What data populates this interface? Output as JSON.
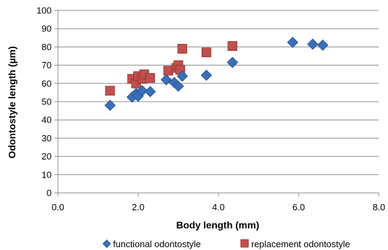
{
  "chart_data": {
    "type": "scatter",
    "title": "",
    "xlabel": "Body length (mm)",
    "ylabel": "Odontostyle length (µm)",
    "xlim": [
      0,
      8
    ],
    "ylim": [
      0,
      100
    ],
    "x_ticks": [
      0,
      2,
      4,
      6,
      8
    ],
    "x_tick_labels": [
      "0.0",
      "2.0",
      "4.0",
      "6.0",
      "8.0"
    ],
    "y_ticks": [
      0,
      10,
      20,
      30,
      40,
      50,
      60,
      70,
      80,
      90,
      100
    ],
    "y_tick_labels": [
      "0",
      "10",
      "20",
      "30",
      "40",
      "50",
      "60",
      "70",
      "80",
      "90",
      "100"
    ],
    "grid": "horizontal",
    "legend_position": "bottom",
    "series": [
      {
        "name": "functional odontostyle",
        "marker": "diamond",
        "color": "#3a6fb7",
        "points": [
          [
            1.3,
            48
          ],
          [
            1.85,
            52.5
          ],
          [
            1.95,
            54.5
          ],
          [
            2.0,
            53
          ],
          [
            2.1,
            56
          ],
          [
            2.3,
            55.5
          ],
          [
            2.7,
            62
          ],
          [
            2.9,
            60.5
          ],
          [
            3.0,
            58.5
          ],
          [
            3.1,
            64
          ],
          [
            3.7,
            64.5
          ],
          [
            4.35,
            71.5
          ],
          [
            5.85,
            82.5
          ],
          [
            6.35,
            81.5
          ],
          [
            6.6,
            81
          ]
        ]
      },
      {
        "name": "replacement odontostyle",
        "marker": "square",
        "color": "#c0504d",
        "points": [
          [
            1.3,
            56
          ],
          [
            1.85,
            62.5
          ],
          [
            1.95,
            60
          ],
          [
            2.0,
            64
          ],
          [
            2.1,
            62.5
          ],
          [
            2.15,
            65
          ],
          [
            2.3,
            63
          ],
          [
            2.75,
            67
          ],
          [
            2.95,
            68.5
          ],
          [
            3.0,
            70
          ],
          [
            3.05,
            67.5
          ],
          [
            3.1,
            79
          ],
          [
            3.7,
            77
          ],
          [
            4.35,
            80.5
          ]
        ]
      }
    ]
  }
}
